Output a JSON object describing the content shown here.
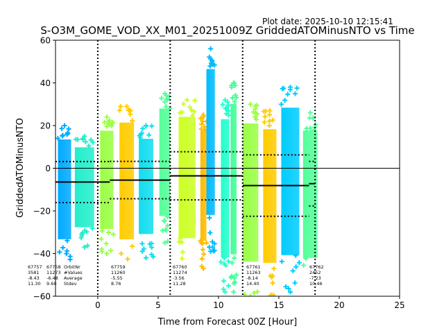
{
  "chart_data": {
    "type": "scatter",
    "plot_date": "Plot date: 2025-10-10 12:15:41",
    "title": "S-O3M_GOME_VOD_XX_M01_20251009Z GriddedATOMinusNTO vs Time",
    "xlabel": "Time from Forecast 00Z [Hour]",
    "ylabel": "GriddedATOMinusNTO",
    "xlim": [
      -3.5,
      25
    ],
    "ylim": [
      -60,
      60
    ],
    "xticks": [
      0,
      5,
      10,
      15,
      20,
      25
    ],
    "yticks": [
      -60,
      -40,
      -20,
      0,
      20,
      40,
      60
    ],
    "grid": false,
    "marker": "plus",
    "forecast_boundaries": [
      0,
      6,
      12,
      18
    ],
    "zero_line": 0,
    "clusters": [
      {
        "x_range": [
          -3.3,
          -2.2
        ],
        "y_range": [
          -45,
          20
        ],
        "color": "#00aaff"
      },
      {
        "x_range": [
          -1.9,
          -0.3
        ],
        "y_range": [
          -37,
          15
        ],
        "color": "#22eecc"
      },
      {
        "x_range": [
          0.2,
          1.3
        ],
        "y_range": [
          -40,
          24
        ],
        "color": "#99ff44"
      },
      {
        "x_range": [
          1.8,
          3.0
        ],
        "y_range": [
          -47,
          29
        ],
        "color": "#ffcc00"
      },
      {
        "x_range": [
          3.4,
          4.6
        ],
        "y_range": [
          -42,
          20
        ],
        "color": "#11ddee"
      },
      {
        "x_range": [
          5.1,
          6.0
        ],
        "y_range": [
          -35,
          35
        ],
        "color": "#55ff99"
      },
      {
        "x_range": [
          6.7,
          8.1
        ],
        "y_range": [
          -47,
          32
        ],
        "color": "#ccff22"
      },
      {
        "x_range": [
          8.5,
          9.0
        ],
        "y_range": [
          -47,
          25
        ],
        "color": "#ffbb00"
      },
      {
        "x_range": [
          9.0,
          9.7
        ],
        "y_range": [
          -39,
          56
        ],
        "color": "#00bbff"
      },
      {
        "x_range": [
          10.2,
          10.9
        ],
        "y_range": [
          -58,
          32
        ],
        "color": "#22ffcc"
      },
      {
        "x_range": [
          11.0,
          11.5
        ],
        "y_range": [
          -58,
          40
        ],
        "color": "#44ff99"
      },
      {
        "x_range": [
          12.0,
          13.3
        ],
        "y_range": [
          -60,
          30
        ],
        "color": "#99ff44"
      },
      {
        "x_range": [
          13.7,
          14.8
        ],
        "y_range": [
          -60,
          27
        ],
        "color": "#ffcc00"
      },
      {
        "x_range": [
          15.2,
          16.7
        ],
        "y_range": [
          -58,
          38
        ],
        "color": "#00ccff"
      },
      {
        "x_range": [
          17.0,
          18.2
        ],
        "y_range": [
          -57,
          26
        ],
        "color": "#55ff99"
      }
    ],
    "orbits": [
      {
        "orbit": "67757",
        "n_values": "3581",
        "average": "-8.43",
        "stdev": "11.30",
        "label_x": -3.5,
        "segment": null
      },
      {
        "orbit": "67758",
        "n_values": "11273",
        "average": "-6.48",
        "stdev": "9.60",
        "label_x": -1.2,
        "segment": [
          -3.5,
          1.0
        ]
      },
      {
        "orbit": "67759",
        "n_values": "11260",
        "average": "-5.55",
        "stdev": "8.76",
        "label_x": 1.1,
        "segment": [
          1.0,
          6.0
        ]
      },
      {
        "orbit": "67760",
        "n_values": "11274",
        "average": "-3.56",
        "stdev": "11.28",
        "label_x": 6.2,
        "segment": [
          6.0,
          12.0
        ]
      },
      {
        "orbit": "67761",
        "n_values": "11263",
        "average": "-8.14",
        "stdev": "14.40",
        "label_x": 12.3,
        "segment": [
          12.0,
          17.5
        ]
      },
      {
        "orbit": "67762",
        "n_values": "2452",
        "average": "-7.23",
        "stdev": "10.46",
        "label_x": 17.5,
        "segment": [
          17.5,
          18.0
        ]
      }
    ],
    "row_labels": [
      "OrbitNr",
      "#Values",
      "Average",
      "Stdev"
    ]
  }
}
